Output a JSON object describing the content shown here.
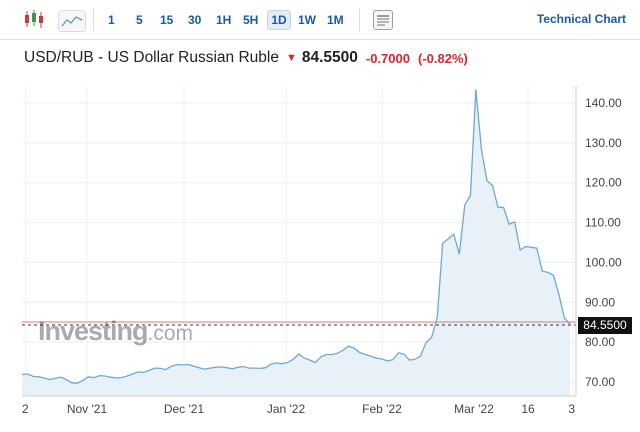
{
  "toolbar": {
    "timeframes": [
      "1",
      "5",
      "15",
      "30",
      "1H",
      "5H",
      "1D",
      "1W",
      "1M"
    ],
    "active_timeframe": "1D",
    "technical_chart_label": "Technical Chart"
  },
  "header": {
    "title": "USD/RUB - US Dollar Russian Ruble",
    "direction": "down",
    "price": "84.5500",
    "change": "-0.7000",
    "change_pct": "(-0.82%)"
  },
  "watermark": {
    "brand": "Investing",
    "suffix": ".com"
  },
  "colors": {
    "accent": "#1a5aa6",
    "negative": "#e0232e",
    "line": "#6fa8d6",
    "area": "#e8f1f8",
    "price_line": "#e27a7a"
  },
  "chart_data": {
    "type": "area",
    "title": "",
    "ylim": [
      65,
      146
    ],
    "y_ticks": [
      "140.00",
      "130.00",
      "120.00",
      "110.00",
      "100.00",
      "90.00",
      "80.00",
      "70.00"
    ],
    "x_labels": [
      "2",
      "Nov '21",
      "Dec '21",
      "Jan '22",
      "Feb '22",
      "Mar '22",
      "16",
      "3"
    ],
    "current_price_label": "84.5500",
    "current_price": 84.55,
    "series": [
      {
        "values": [
          71.9,
          72.0,
          71.4,
          71.3,
          71.0,
          70.6,
          70.9,
          71.2,
          70.6,
          69.8,
          69.7,
          70.4,
          71.3,
          71.1,
          71.6,
          71.5,
          71.2,
          71.0,
          71.1,
          71.5,
          72.0,
          72.5,
          72.4,
          72.9,
          73.5,
          73.4,
          73.1,
          74.0,
          74.4,
          74.3,
          74.4,
          74.0,
          73.6,
          73.2,
          73.5,
          73.7,
          73.8,
          73.6,
          73.3,
          73.7,
          73.9,
          73.5,
          73.5,
          73.4,
          73.6,
          74.5,
          74.8,
          74.6,
          74.9,
          75.7,
          77.0,
          76.0,
          75.5,
          74.9,
          76.3,
          76.9,
          76.9,
          77.2,
          78.0,
          79.0,
          78.5,
          77.4,
          76.9,
          76.5,
          76.0,
          75.8,
          75.3,
          75.6,
          77.3,
          77.0,
          75.5,
          75.7,
          76.5,
          79.9,
          81.2,
          86.1,
          104.8,
          105.9,
          107.1,
          102.1,
          114.4,
          116.8,
          143.4,
          128.4,
          120.5,
          119.3,
          113.8,
          113.8,
          109.6,
          110.2,
          103.1,
          104.0,
          103.8,
          103.6,
          97.8,
          97.5,
          96.8,
          92.0,
          86.0,
          84.55
        ]
      }
    ]
  }
}
